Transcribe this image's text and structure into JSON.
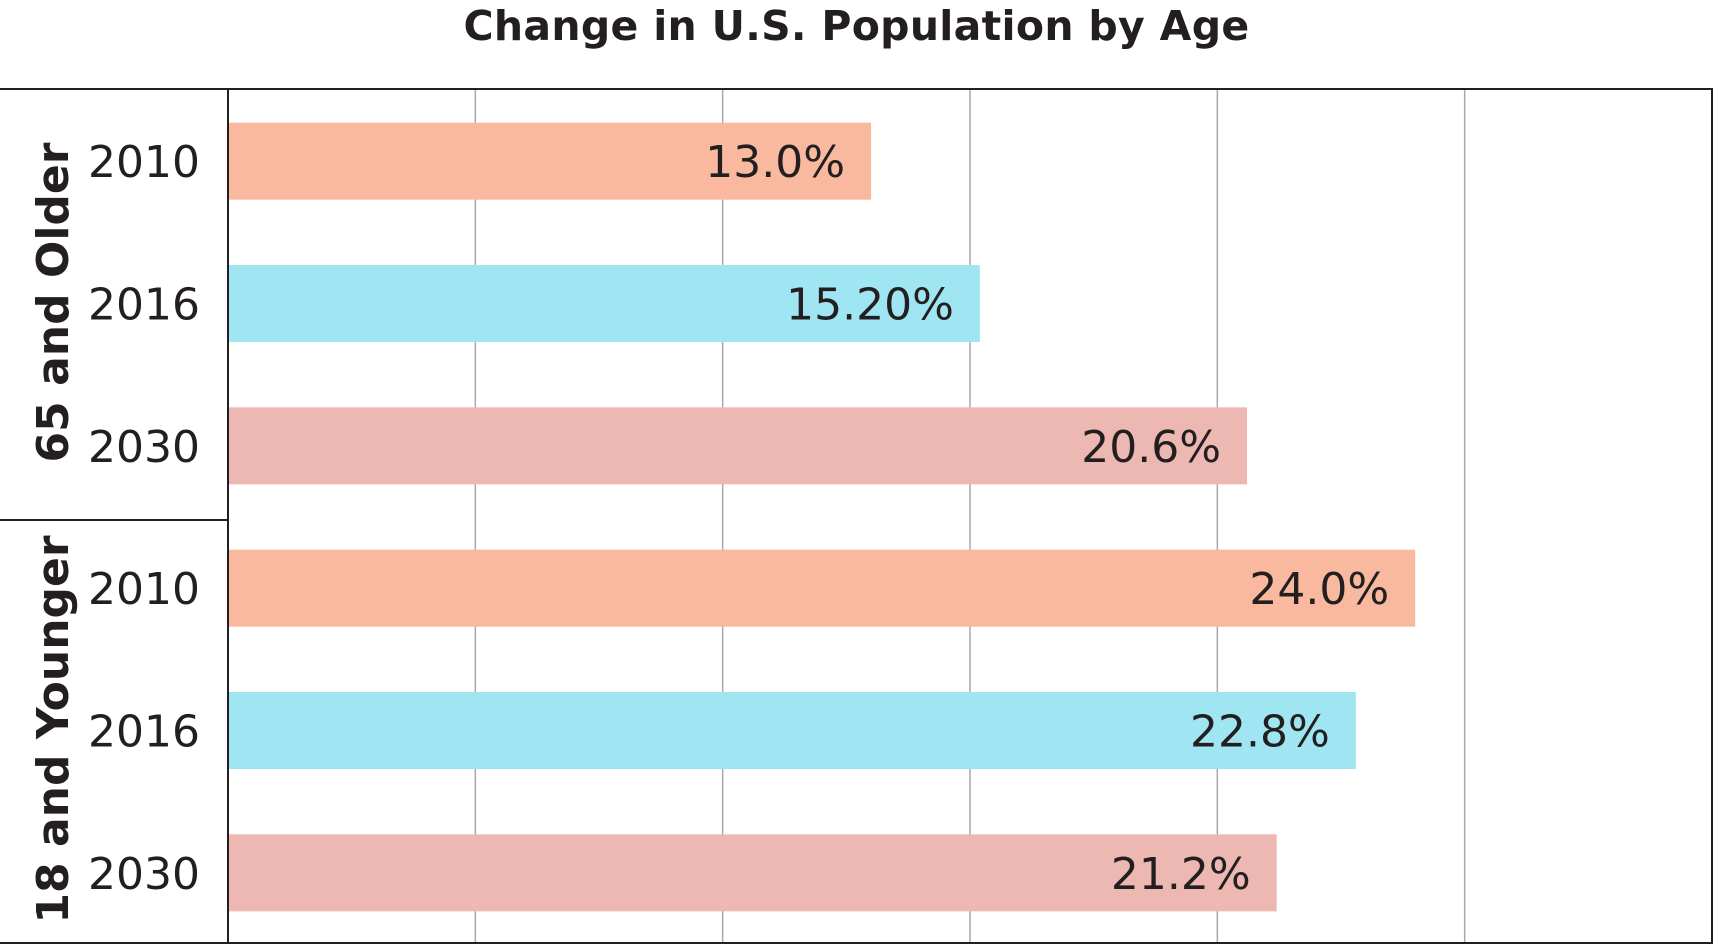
{
  "chart_data": {
    "type": "bar",
    "orientation": "horizontal",
    "title": "Change in U.S. Population by Age",
    "xlim": [
      0,
      30
    ],
    "grid": true,
    "colors": {
      "2010": "#f9b99f",
      "2016": "#a0e6f2",
      "2030": "#edb8b2"
    },
    "groups": [
      {
        "name": "65 and Older",
        "bars": [
          {
            "year": "2010",
            "value": 13.0,
            "label": "13.0%"
          },
          {
            "year": "2016",
            "value": 15.2,
            "label": "15.20%"
          },
          {
            "year": "2030",
            "value": 20.6,
            "label": "20.6%"
          }
        ]
      },
      {
        "name": "18 and Younger",
        "bars": [
          {
            "year": "2010",
            "value": 24.0,
            "label": "24.0%"
          },
          {
            "year": "2016",
            "value": 22.8,
            "label": "22.8%"
          },
          {
            "year": "2030",
            "value": 21.2,
            "label": "21.2%"
          }
        ]
      }
    ]
  }
}
